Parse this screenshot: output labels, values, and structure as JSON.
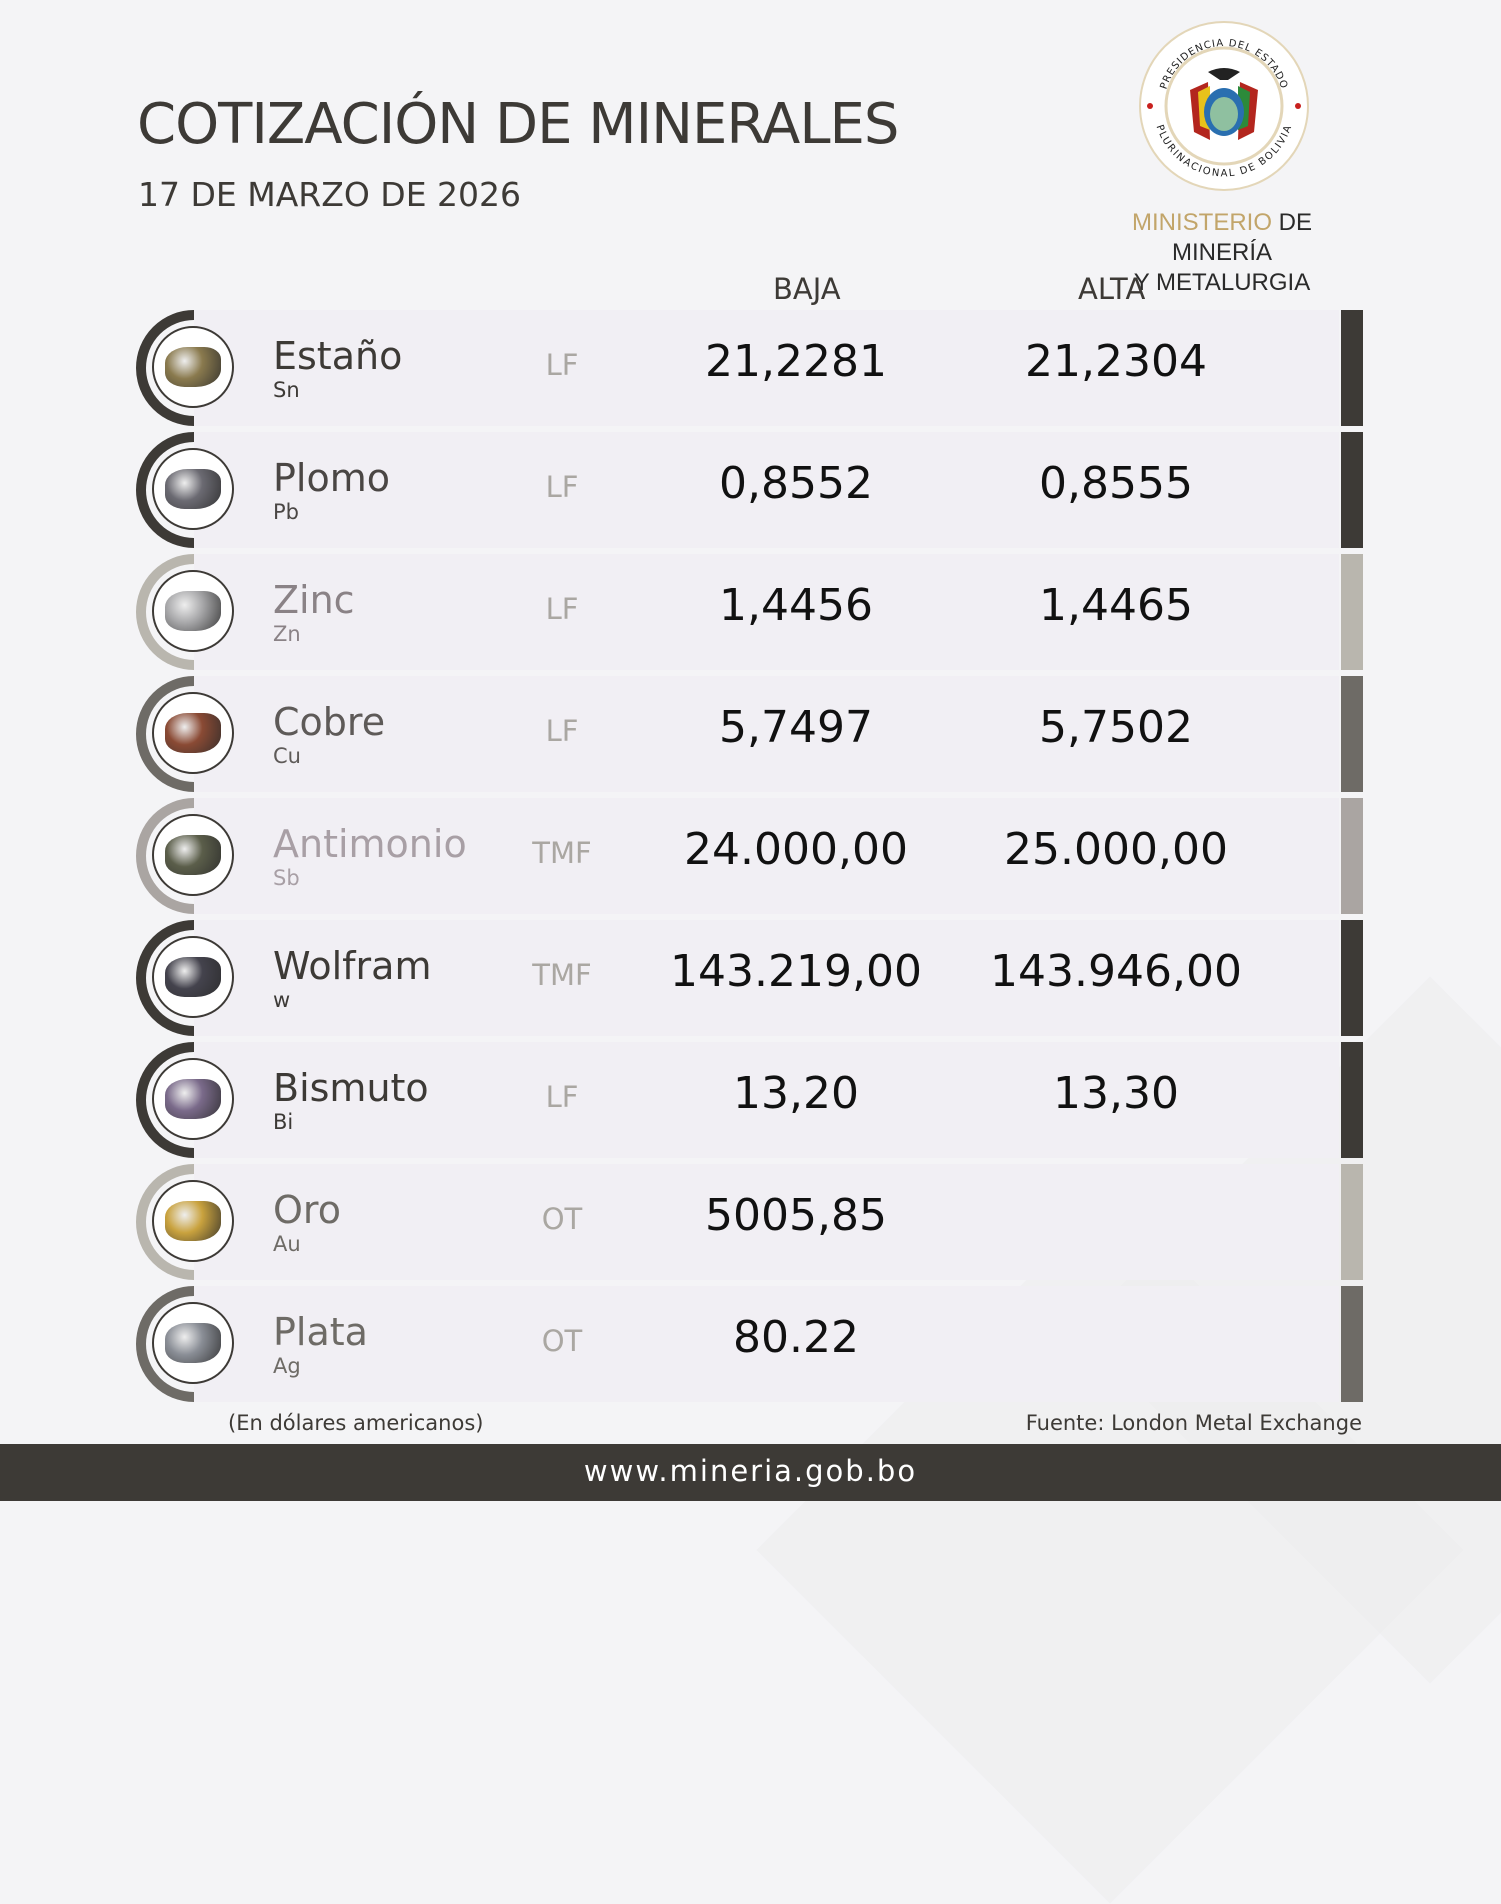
{
  "header": {
    "title": "COTIZACIÓN DE MINERALES",
    "date": "17 DE MARZO DE 2026"
  },
  "logo": {
    "seal_text_top": "PRESIDENCIA DEL ESTADO",
    "seal_text_bottom": "PLURINACIONAL DE BOLIVIA",
    "ministry_gold": "MINISTERIO",
    "ministry_rest": " DE MINERÍA",
    "ministry_line2": "Y METALURGIA",
    "gold_color": "#c2a56a"
  },
  "table": {
    "col_low": "BAJA",
    "col_high": "ALTA",
    "rows": [
      {
        "name": "Estaño",
        "symbol": "Sn",
        "unit": "LF",
        "low": "21,2281",
        "high": "21,2304",
        "accent": "#3d3a36",
        "name_color": "#3d3a36",
        "rock_color": "#8a7a4e"
      },
      {
        "name": "Plomo",
        "symbol": "Pb",
        "unit": "LF",
        "low": "0,8552",
        "high": "0,8555",
        "accent": "#3d3a36",
        "name_color": "#4a4644",
        "rock_color": "#6b6a72"
      },
      {
        "name": "Zinc",
        "symbol": "Zn",
        "unit": "LF",
        "low": "1,4456",
        "high": "1,4465",
        "accent": "#b9b6ae",
        "name_color": "#8a8286",
        "rock_color": "#a8a8aa"
      },
      {
        "name": "Cobre",
        "symbol": "Cu",
        "unit": "LF",
        "low": "5,7497",
        "high": "5,7502",
        "accent": "#6e6b66",
        "name_color": "#5e5a58",
        "rock_color": "#8a4a34"
      },
      {
        "name": "Antimonio",
        "symbol": "Sb",
        "unit": "TMF",
        "low": "24.000,00",
        "high": "25.000,00",
        "accent": "#aaa5a2",
        "name_color": "#a89fa5",
        "rock_color": "#5b5e4a"
      },
      {
        "name": "Wolfram",
        "symbol": "w",
        "unit": "TMF",
        "low": "143.219,00",
        "high": "143.946,00",
        "accent": "#3d3a36",
        "name_color": "#3d3a36",
        "rock_color": "#44434d"
      },
      {
        "name": "Bismuto",
        "symbol": "Bi",
        "unit": "LF",
        "low": "13,20",
        "high": "13,30",
        "accent": "#3d3a36",
        "name_color": "#3d3a36",
        "rock_color": "#7a6a8a"
      },
      {
        "name": "Oro",
        "symbol": "Au",
        "unit": "OT",
        "low": "5005,85",
        "high": "",
        "accent": "#b9b6ae",
        "name_color": "#6e6b66",
        "rock_color": "#c9a23e"
      },
      {
        "name": "Plata",
        "symbol": "Ag",
        "unit": "OT",
        "low": "80.22",
        "high": "",
        "accent": "#6e6b66",
        "name_color": "#6e6b66",
        "rock_color": "#8a8e96"
      }
    ]
  },
  "footer": {
    "note": "(En dólares americanos)",
    "source": "Fuente: London Metal Exchange",
    "url": "www.mineria.gob.bo"
  }
}
